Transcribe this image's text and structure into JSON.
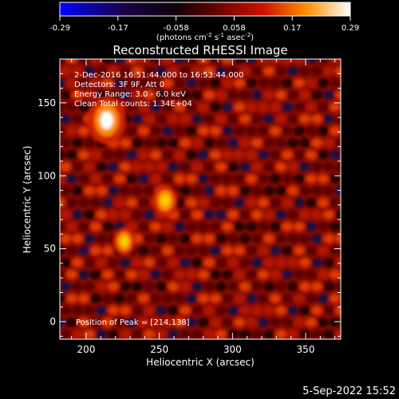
{
  "chart_data": {
    "type": "heatmap",
    "title": "Reconstructed RHESSI Image",
    "colorbar": {
      "ticks": [
        "-0.29",
        "-0.17",
        "-0.058",
        "0.058",
        "0.17",
        "0.29"
      ],
      "range": [
        -0.29,
        0.29
      ],
      "unit_label": "(photons cm",
      "unit_sup1": "-2",
      "unit_mid": " s",
      "unit_sup2": "-1",
      "unit_tail": " asec",
      "unit_sup3": "-2",
      "unit_close": ")",
      "colormap": "blue-black-red-yellow-white"
    },
    "xlabel": "Heliocentric X (arcsec)",
    "ylabel": "Heliocentric Y (arcsec)",
    "xlim": [
      182,
      374
    ],
    "ylim": [
      -12,
      180
    ],
    "xticks": [
      200,
      250,
      300,
      350
    ],
    "yticks": [
      0,
      50,
      100,
      150
    ],
    "annotations": [
      " 2-Dec-2016 16:51:44.000 to 16:53:44.000",
      "Detectors: 3F 9F, Att 0",
      "Energy Range: 3.0 - 6.0 keV",
      "Clean     Total counts: 1.34E+04"
    ],
    "peak_label": "Position of Peak = [214,138]",
    "peak": [
      214,
      138
    ],
    "sources": [
      {
        "x": 214,
        "y": 138,
        "intensity": 0.29
      },
      {
        "x": 254,
        "y": 83,
        "intensity": 0.19
      },
      {
        "x": 226,
        "y": 55,
        "intensity": 0.17
      }
    ],
    "grid": false
  },
  "footer": {
    "timestamp": "5-Sep-2022 15:52"
  }
}
